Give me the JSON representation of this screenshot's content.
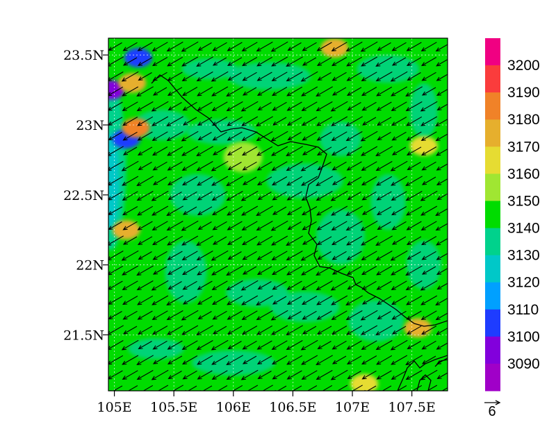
{
  "title": "",
  "map": {
    "lon_range": [
      104.95,
      107.8
    ],
    "lat_range": [
      21.1,
      23.62
    ],
    "x_ticks": [
      {
        "value": 105.0,
        "label": "105E"
      },
      {
        "value": 105.5,
        "label": "105.5E"
      },
      {
        "value": 106.0,
        "label": "106E"
      },
      {
        "value": 106.5,
        "label": "106.5E"
      },
      {
        "value": 107.0,
        "label": "107E"
      },
      {
        "value": 107.5,
        "label": "107.5E"
      }
    ],
    "y_ticks": [
      {
        "value": 23.5,
        "label": "23.5N"
      },
      {
        "value": 23.0,
        "label": "23N"
      },
      {
        "value": 22.5,
        "label": "22.5N"
      },
      {
        "value": 22.0,
        "label": "22N"
      },
      {
        "value": 21.5,
        "label": "21.5N"
      }
    ],
    "grid": true,
    "background_level_color": "#22cc22",
    "wind": {
      "prevailing_direction": "from northeast toward southwest",
      "reference_vector_label": "6",
      "reference_vector_magnitude": 6
    }
  },
  "colorbar": {
    "levels": [
      "3090",
      "3100",
      "3110",
      "3120",
      "3130",
      "3140",
      "3150",
      "3160",
      "3170",
      "3180",
      "3190",
      "3200"
    ],
    "colors": [
      "#a000c8",
      "#8200dc",
      "#1e3cff",
      "#00a0ff",
      "#00c8c8",
      "#00d28c",
      "#00dc00",
      "#a0e632",
      "#e6dc32",
      "#e6af2d",
      "#f08228",
      "#fa3c3c",
      "#f00082"
    ]
  },
  "chart_data": {
    "type": "heatmap",
    "title": "",
    "xlabel": "",
    "ylabel": "",
    "x_tick_labels": [
      "105E",
      "105.5E",
      "106E",
      "106.5E",
      "107E",
      "107.5E"
    ],
    "y_tick_labels": [
      "23.5N",
      "23N",
      "22.5N",
      "22N",
      "21.5N"
    ],
    "xlim": [
      104.95,
      107.8
    ],
    "ylim": [
      21.1,
      23.62
    ],
    "contour_levels": [
      3090,
      3100,
      3110,
      3120,
      3130,
      3140,
      3150,
      3160,
      3170,
      3180,
      3190,
      3200
    ],
    "dominant_range": [
      3140,
      3150
    ],
    "features": [
      {
        "lon": 104.97,
        "lat": 23.25,
        "range": [
          3090,
          3100
        ]
      },
      {
        "lon": 105.1,
        "lat": 22.9,
        "range": [
          3100,
          3110
        ]
      },
      {
        "lon": 105.2,
        "lat": 23.48,
        "range": [
          3100,
          3110
        ]
      },
      {
        "lon": 105.15,
        "lat": 23.3,
        "range": [
          3170,
          3180
        ]
      },
      {
        "lon": 105.18,
        "lat": 22.98,
        "range": [
          3180,
          3190
        ]
      },
      {
        "lon": 105.1,
        "lat": 22.25,
        "range": [
          3170,
          3180
        ]
      },
      {
        "lon": 106.08,
        "lat": 22.77,
        "range": [
          3150,
          3160
        ]
      },
      {
        "lon": 106.85,
        "lat": 23.55,
        "range": [
          3170,
          3180
        ]
      },
      {
        "lon": 107.55,
        "lat": 21.55,
        "range": [
          3170,
          3180
        ]
      },
      {
        "lon": 107.6,
        "lat": 22.85,
        "range": [
          3160,
          3170
        ]
      },
      {
        "lon": 107.1,
        "lat": 21.15,
        "range": [
          3160,
          3170
        ]
      }
    ],
    "wind_reference": 6
  }
}
